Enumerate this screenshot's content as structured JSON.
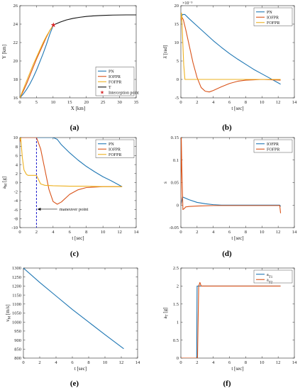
{
  "chart_data": [
    {
      "panel": "(a)",
      "type": "line",
      "xlabel": "X [km]",
      "ylabel": "Y [km]",
      "xlim": [
        0,
        35
      ],
      "ylim": [
        16,
        26
      ],
      "xticks": [
        0,
        5,
        10,
        15,
        20,
        25,
        30,
        35
      ],
      "yticks": [
        16,
        18,
        20,
        22,
        24,
        26
      ],
      "legend_position": "bottom-right",
      "series": [
        {
          "name": "PN",
          "color": "#1f77b4",
          "x": [
            0,
            1,
            2,
            3,
            4,
            5,
            6,
            7,
            8,
            9,
            10.1
          ],
          "y": [
            16,
            16.4,
            16.9,
            17.5,
            18.2,
            19.0,
            19.9,
            20.8,
            21.8,
            22.9,
            23.9
          ]
        },
        {
          "name": "IOFPR",
          "color": "#d95319",
          "x": [
            0,
            1,
            2,
            3,
            4,
            5,
            6,
            7,
            8,
            9,
            10.1
          ],
          "y": [
            16,
            16.7,
            17.5,
            18.4,
            19.3,
            20.2,
            21.0,
            21.8,
            22.6,
            23.3,
            23.9
          ]
        },
        {
          "name": "FOFPR",
          "color": "#edb120",
          "x": [
            0,
            1,
            2,
            3,
            4,
            5,
            6,
            7,
            8,
            9,
            10.1
          ],
          "y": [
            16,
            16.9,
            17.8,
            18.7,
            19.6,
            20.4,
            21.2,
            22.0,
            22.7,
            23.3,
            23.9
          ]
        },
        {
          "name": "T",
          "color": "#111111",
          "x": [
            10.1,
            12,
            14,
            16,
            18,
            20,
            22,
            24,
            26,
            28,
            30,
            32,
            35
          ],
          "y": [
            23.9,
            24.2,
            24.45,
            24.62,
            24.74,
            24.83,
            24.89,
            24.93,
            24.96,
            24.98,
            24.99,
            25.0,
            25.0
          ]
        },
        {
          "name": "Interception point",
          "color": "#d62728",
          "marker": "star",
          "x": [
            10.1
          ],
          "y": [
            23.9
          ]
        }
      ]
    },
    {
      "panel": "(b)",
      "type": "line",
      "xlabel": "t [sec]",
      "ylabel": "λ̇  [rad]",
      "exponent_label": "×10⁻³",
      "xlim": [
        0,
        14
      ],
      "ylim": [
        -0.005,
        0.02
      ],
      "xticks": [
        0,
        2,
        4,
        6,
        8,
        10,
        12,
        14
      ],
      "yticks": [
        -0.005,
        0,
        0.005,
        0.01,
        0.015,
        0.02
      ],
      "ytick_labels": [
        "-5",
        "0",
        "5",
        "10",
        "15",
        "20"
      ],
      "legend_position": "top-right",
      "series": [
        {
          "name": "PN",
          "color": "#1f77b4",
          "x": [
            0,
            0.2,
            0.5,
            1,
            2,
            3,
            4,
            5,
            6,
            7,
            8,
            9,
            10,
            11,
            12.3
          ],
          "y": [
            0.0165,
            0.0176,
            0.0176,
            0.0165,
            0.0145,
            0.0125,
            0.0105,
            0.0087,
            0.007,
            0.0055,
            0.0041,
            0.0027,
            0.0015,
            0.0003,
            -0.0013
          ]
        },
        {
          "name": "IOFPR",
          "color": "#d95319",
          "x": [
            0,
            0.1,
            0.3,
            0.6,
            1,
            1.5,
            2,
            2.5,
            3,
            3.5,
            4,
            5,
            6,
            7,
            8,
            9,
            10,
            12.3
          ],
          "y": [
            0.016,
            0.017,
            0.0162,
            0.0135,
            0.0095,
            0.0045,
            0.0005,
            -0.0022,
            -0.0032,
            -0.0034,
            -0.003,
            -0.002,
            -0.0011,
            -0.0005,
            -0.0002,
            -0.0001,
            0.0,
            -0.0002
          ]
        },
        {
          "name": "FOFPR",
          "color": "#edb120",
          "x": [
            0,
            0.08,
            0.2,
            0.35,
            0.5,
            1,
            2,
            4,
            6,
            8,
            10,
            12.3
          ],
          "y": [
            0.0165,
            0.018,
            0.012,
            0.004,
            0.0,
            0.0,
            0.0,
            0.0,
            0.0,
            0.0,
            0.0,
            0.0
          ]
        }
      ]
    },
    {
      "panel": "(c)",
      "type": "line",
      "xlabel": "t [sec]",
      "ylabel": "a_M [g]",
      "xlim": [
        0,
        14
      ],
      "ylim": [
        -10,
        10
      ],
      "xticks": [
        0,
        2,
        4,
        6,
        8,
        10,
        12,
        14
      ],
      "yticks": [
        -10,
        -8,
        -6,
        -4,
        -2,
        0,
        2,
        4,
        6,
        8,
        10
      ],
      "legend_position": "top-right",
      "annotation": {
        "text": "maneuver point",
        "x": 2,
        "arrow_from_x": 4.5,
        "arrow_y": -5.9
      },
      "series": [
        {
          "name": "PN",
          "color": "#1f77b4",
          "x": [
            0,
            0.15,
            0.3,
            1,
            2,
            3,
            4,
            4.5,
            5,
            6,
            7,
            8,
            9,
            10,
            11,
            12.3
          ],
          "y": [
            9.5,
            10,
            10,
            10,
            10,
            10,
            10,
            9.6,
            8.4,
            6.6,
            5.0,
            3.6,
            2.4,
            1.3,
            0.4,
            -0.9
          ]
        },
        {
          "name": "IOFPR",
          "color": "#d95319",
          "x": [
            0,
            0.1,
            0.3,
            1,
            2,
            2.5,
            3,
            3.5,
            4,
            4.5,
            5,
            6,
            7,
            8,
            10,
            12.3
          ],
          "y": [
            9.0,
            10,
            10,
            10,
            10,
            7.5,
            3.0,
            -1.5,
            -4.2,
            -4.8,
            -4.3,
            -2.6,
            -1.6,
            -1.1,
            -0.9,
            -0.9
          ]
        },
        {
          "name": "FOFPR",
          "color": "#edb120",
          "x": [
            0,
            0.1,
            0.3,
            0.5,
            0.8,
            1,
            1.5,
            2,
            2.5,
            3,
            4,
            6,
            8,
            10,
            12.3
          ],
          "y": [
            9.5,
            10,
            5.5,
            2.8,
            1.8,
            1.6,
            1.6,
            1.6,
            -0.3,
            -0.6,
            -0.7,
            -0.8,
            -0.8,
            -0.9,
            -0.9
          ]
        }
      ],
      "vline": {
        "x": 2,
        "color": "#1a1acc",
        "style": "dashed"
      }
    },
    {
      "panel": "(d)",
      "type": "line",
      "xlabel": "t [sec]",
      "ylabel": "s",
      "xlim": [
        0,
        14
      ],
      "ylim": [
        -0.05,
        0.15
      ],
      "xticks": [
        0,
        2,
        4,
        6,
        8,
        10,
        12,
        14
      ],
      "yticks": [
        -0.05,
        0,
        0.05,
        0.1,
        0.15
      ],
      "legend_position": "top-right",
      "series": [
        {
          "name": "IOFPR",
          "color": "#1f77b4",
          "x": [
            0,
            0.2,
            0.5,
            1,
            2,
            3,
            4,
            5,
            6,
            8,
            10,
            12.2,
            12.3
          ],
          "y": [
            0.0,
            0.018,
            0.016,
            0.012,
            0.006,
            0.003,
            0.001,
            0.0,
            0.0,
            0.0,
            0.0,
            0.0,
            -0.003
          ]
        },
        {
          "name": "FOFPR",
          "color": "#d95319",
          "x": [
            0,
            0.05,
            0.12,
            0.25,
            0.4,
            0.6,
            1,
            2,
            4,
            8,
            12.2,
            12.3
          ],
          "y": [
            0.0,
            0.15,
            0.08,
            -0.01,
            -0.008,
            -0.004,
            -0.003,
            -0.002,
            -0.001,
            -0.001,
            -0.001,
            -0.018
          ]
        }
      ]
    },
    {
      "panel": "(e)",
      "type": "line",
      "xlabel": "t [sec]",
      "ylabel": "v_M [m/s]",
      "xlim": [
        0,
        14
      ],
      "ylim": [
        800,
        1300
      ],
      "xticks": [
        0,
        2,
        4,
        6,
        8,
        10,
        12,
        14
      ],
      "yticks": [
        800,
        850,
        900,
        950,
        1000,
        1050,
        1100,
        1150,
        1200,
        1250,
        1300
      ],
      "series": [
        {
          "name": "",
          "color": "#1f77b4",
          "x": [
            0,
            2,
            4,
            6,
            8,
            10,
            12.3
          ],
          "y": [
            1300,
            1220,
            1145,
            1070,
            1000,
            930,
            852
          ]
        }
      ]
    },
    {
      "panel": "(f)",
      "type": "line",
      "xlabel": "t [sec]",
      "ylabel": "a_T [g]",
      "xlim": [
        0,
        14
      ],
      "ylim": [
        0,
        2.5
      ],
      "xticks": [
        0,
        2,
        4,
        6,
        8,
        10,
        12,
        14
      ],
      "yticks": [
        0,
        0.5,
        1,
        1.5,
        2,
        2.5
      ],
      "legend_position": "top-right",
      "series": [
        {
          "name": "a_T1",
          "color": "#1f77b4",
          "x": [
            0,
            1.95,
            2.0,
            2.2,
            12.3
          ],
          "y": [
            0,
            0,
            2.0,
            2.0,
            2.0
          ]
        },
        {
          "name": "a_T2",
          "color": "#d95319",
          "x": [
            0,
            2.05,
            2.2,
            2.35,
            2.5,
            12.3
          ],
          "y": [
            0,
            0,
            2.0,
            2.1,
            2.0,
            2.0
          ]
        }
      ]
    }
  ]
}
